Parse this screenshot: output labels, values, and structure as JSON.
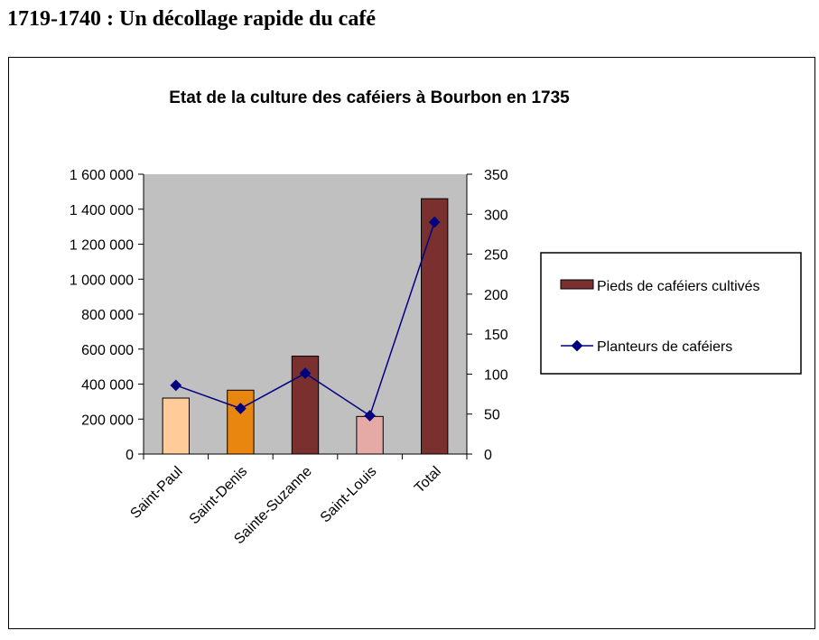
{
  "page": {
    "heading": "1719-1740 : Un décollage rapide du café"
  },
  "chart_data": {
    "type": "bar",
    "title": "Etat de la culture des caféiers à Bourbon en 1735",
    "categories": [
      "Saint-Paul",
      "Saint-Denis",
      "Sainte-Suzanne",
      "Saint-Louis",
      "Total"
    ],
    "series": [
      {
        "name": "Pieds de caféiers cultivés",
        "type": "bar",
        "axis": "left",
        "values": [
          320000,
          365000,
          560000,
          215000,
          1460000
        ],
        "colors": [
          "#FFCC99",
          "#E8860F",
          "#7B3030",
          "#E5A9A6",
          "#7B3030"
        ]
      },
      {
        "name": "Planteurs de caféiers",
        "type": "line",
        "axis": "right",
        "values": [
          86,
          57,
          101,
          48,
          290
        ],
        "color": "#000080"
      }
    ],
    "left_axis": {
      "ylim": [
        0,
        1600000
      ],
      "ticks": [
        0,
        200000,
        400000,
        600000,
        800000,
        1000000,
        1200000,
        1400000,
        1600000
      ],
      "tick_labels": [
        "0",
        "200 000",
        "400 000",
        "600 000",
        "800 000",
        "1 000 000",
        "1 200 000",
        "1 400 000",
        "1 600 000"
      ]
    },
    "right_axis": {
      "ylim": [
        0,
        350
      ],
      "ticks": [
        0,
        50,
        100,
        150,
        200,
        250,
        300,
        350
      ],
      "tick_labels": [
        "0",
        "50",
        "100",
        "150",
        "200",
        "250",
        "300",
        "350"
      ]
    },
    "plot_background": "#C0C0C0",
    "grid": false,
    "legend_position": "right"
  }
}
